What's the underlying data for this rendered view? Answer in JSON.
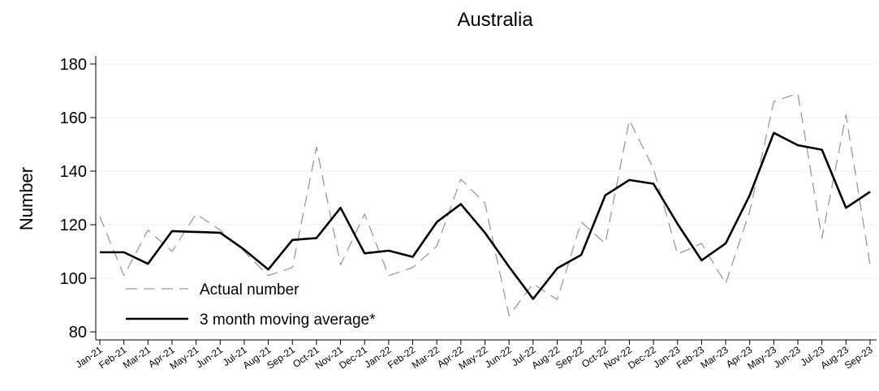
{
  "chart_data": {
    "type": "line",
    "title": "Australia",
    "y_label": "Number",
    "categories": [
      "Jan-21",
      "Feb-21",
      "Mar-21",
      "Apr-21",
      "May-21",
      "Jun-21",
      "Jul-21",
      "Aug-21",
      "Sep-21",
      "Oct-21",
      "Nov-21",
      "Dec-21",
      "Jan-22",
      "Feb-22",
      "Mar-22",
      "Apr-22",
      "May-22",
      "Jun-22",
      "Jul-22",
      "Aug-22",
      "Sep-22",
      "Oct-22",
      "Nov-22",
      "Dec-22",
      "Jan-23",
      "Feb-23",
      "Mar-23",
      "Apr-23",
      "May-23",
      "Jun-23",
      "Jul-23",
      "Aug-23",
      "Sep-23"
    ],
    "series": [
      {
        "name": "Actual number",
        "color": "#999999",
        "dashed": true,
        "width": 1.3,
        "values": [
          123,
          101,
          118,
          110,
          124,
          118,
          110,
          101,
          104,
          149,
          105,
          124,
          101,
          104,
          112,
          137,
          128,
          86,
          98,
          92,
          121,
          113,
          159,
          141,
          109,
          113,
          98,
          125,
          166,
          169,
          115,
          161,
          105
        ]
      },
      {
        "name": "3 month moving average*",
        "color": "#000000",
        "dashed": false,
        "width": 2.6,
        "values": [
          109.7,
          109.7,
          105.4,
          117.6,
          117.3,
          117.0,
          110.7,
          103.3,
          114.3,
          115.0,
          126.3,
          109.3,
          110.3,
          108.0,
          121.0,
          127.7,
          117.0,
          104.3,
          92.3,
          103.7,
          108.7,
          131.0,
          136.7,
          135.3,
          120.3,
          106.7,
          113.0,
          131.0,
          154.3,
          149.7,
          148.0,
          126.3,
          132.3
        ]
      }
    ],
    "ylim": [
      77,
      183
    ],
    "yticks": [
      80,
      100,
      120,
      140,
      160,
      180
    ],
    "grid": true,
    "legend": "lower left"
  }
}
